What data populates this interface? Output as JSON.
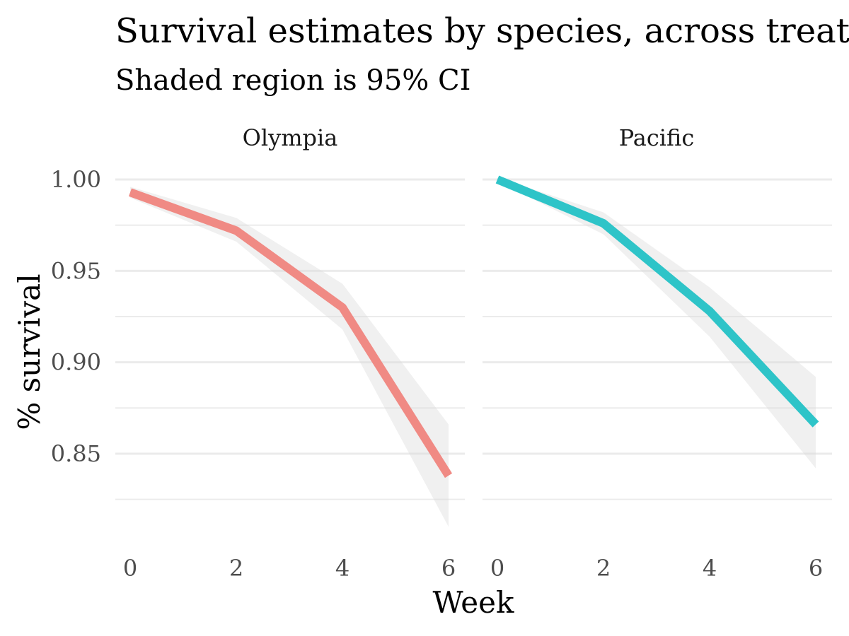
{
  "chart_data": {
    "type": "line",
    "title": "Survival estimates by species, across treatments",
    "subtitle": "Shaded region is 95% CI",
    "xlabel": "Week",
    "ylabel": "% survival",
    "x_ticks": [
      0,
      2,
      4,
      6
    ],
    "y_ticks": [
      0.85,
      0.9,
      0.95,
      1.0
    ],
    "y_tick_labels": [
      "0.85",
      "0.90",
      "0.95",
      "1.00"
    ],
    "xlim": [
      0,
      6
    ],
    "ylim": [
      0.8025,
      1.0
    ],
    "grid": true,
    "legend": "none",
    "panels": [
      {
        "name": "Olympia",
        "color": "#F08A84",
        "x": [
          0,
          2,
          4,
          6
        ],
        "y": [
          0.993,
          0.972,
          0.93,
          0.838
        ],
        "ci_lower": [
          0.99,
          0.966,
          0.918,
          0.81
        ],
        "ci_upper": [
          0.996,
          0.979,
          0.943,
          0.866
        ]
      },
      {
        "name": "Pacific",
        "color": "#2EC4C8",
        "x": [
          0,
          2,
          4,
          6
        ],
        "y": [
          1.0,
          0.976,
          0.928,
          0.866
        ],
        "ci_lower": [
          0.999,
          0.97,
          0.914,
          0.842
        ],
        "ci_upper": [
          1.001,
          0.982,
          0.941,
          0.892
        ]
      }
    ]
  }
}
